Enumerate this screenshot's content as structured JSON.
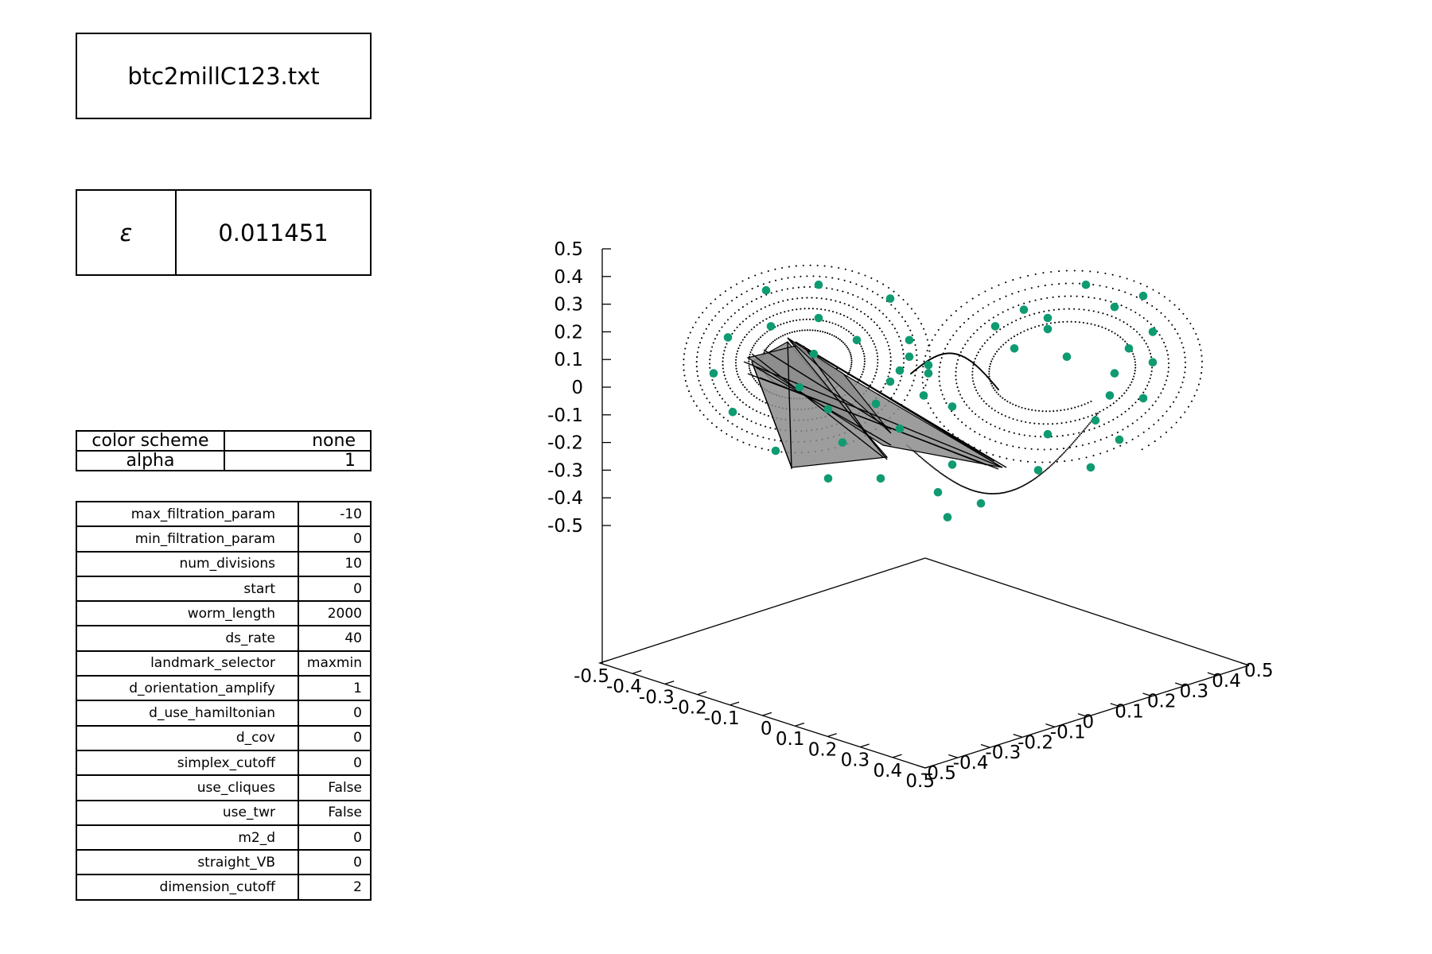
{
  "title": "btc2millC123.txt",
  "epsilon": {
    "symbol": "ε",
    "value": "0.011451"
  },
  "display_settings": [
    {
      "key": "color scheme",
      "value": "none"
    },
    {
      "key": "alpha",
      "value": "1"
    }
  ],
  "parameters": [
    {
      "key": "max_filtration_param",
      "value": "-10"
    },
    {
      "key": "min_filtration_param",
      "value": "0"
    },
    {
      "key": "num_divisions",
      "value": "10"
    },
    {
      "key": "start",
      "value": "0"
    },
    {
      "key": "worm_length",
      "value": "2000"
    },
    {
      "key": "ds_rate",
      "value": "40"
    },
    {
      "key": "landmark_selector",
      "value": "maxmin"
    },
    {
      "key": "d_orientation_amplify",
      "value": "1"
    },
    {
      "key": "d_use_hamiltonian",
      "value": "0"
    },
    {
      "key": "d_cov",
      "value": "0"
    },
    {
      "key": "simplex_cutoff",
      "value": "0"
    },
    {
      "key": "use_cliques",
      "value": "False"
    },
    {
      "key": "use_twr",
      "value": "False"
    },
    {
      "key": "m2_d",
      "value": "0"
    },
    {
      "key": "straight_VB",
      "value": "0"
    },
    {
      "key": "dimension_cutoff",
      "value": "2"
    }
  ],
  "chart_data": {
    "type": "scatter",
    "projection": "3d",
    "xlim": [
      -0.5,
      0.5
    ],
    "ylim": [
      -0.5,
      0.5
    ],
    "zlim": [
      -0.5,
      0.5
    ],
    "x_ticks": [
      "-0.5",
      "-0.4",
      "-0.3",
      "-0.2",
      "-0.1",
      "0",
      "0.1",
      "0.2",
      "0.3",
      "0.4",
      "0.5"
    ],
    "y_ticks": [
      "-0.5",
      "-0.4",
      "-0.3",
      "-0.2",
      "-0.1",
      "0",
      "0.1",
      "0.2",
      "0.3",
      "0.4",
      "0.5"
    ],
    "z_ticks": [
      "0.5",
      "0.4",
      "0.3",
      "0.2",
      "0.1",
      "0",
      "-0.1",
      "-0.2",
      "-0.3",
      "-0.4",
      "-0.5"
    ],
    "grid": false,
    "landmark_color": "#0f9b72",
    "trajectory_color": "#000000",
    "complex_fill_color": "#8c8c8c",
    "landmarks": [
      [
        -0.46,
        0.05
      ],
      [
        -0.43,
        0.18
      ],
      [
        -0.42,
        -0.09
      ],
      [
        -0.35,
        0.35
      ],
      [
        -0.34,
        0.22
      ],
      [
        -0.33,
        -0.23
      ],
      [
        -0.28,
        0.0
      ],
      [
        -0.25,
        0.12
      ],
      [
        -0.24,
        0.37
      ],
      [
        -0.24,
        0.25
      ],
      [
        -0.22,
        -0.33
      ],
      [
        -0.22,
        -0.08
      ],
      [
        -0.19,
        -0.2
      ],
      [
        -0.16,
        0.17
      ],
      [
        -0.12,
        -0.06
      ],
      [
        -0.11,
        -0.33
      ],
      [
        -0.09,
        0.02
      ],
      [
        -0.09,
        0.32
      ],
      [
        -0.07,
        0.06
      ],
      [
        -0.07,
        -0.15
      ],
      [
        -0.05,
        0.17
      ],
      [
        -0.05,
        0.11
      ],
      [
        -0.02,
        -0.03
      ],
      [
        -0.01,
        0.08
      ],
      [
        -0.01,
        0.05
      ],
      [
        0.01,
        -0.38
      ],
      [
        0.03,
        -0.47
      ],
      [
        0.04,
        -0.28
      ],
      [
        0.1,
        -0.42
      ],
      [
        0.04,
        -0.07
      ],
      [
        0.13,
        0.22
      ],
      [
        0.17,
        0.14
      ],
      [
        0.19,
        0.28
      ],
      [
        0.24,
        0.21
      ],
      [
        0.24,
        -0.17
      ],
      [
        0.22,
        -0.3
      ],
      [
        0.24,
        0.25
      ],
      [
        0.32,
        0.37
      ],
      [
        0.28,
        0.11
      ],
      [
        0.33,
        -0.29
      ],
      [
        0.34,
        -0.12
      ],
      [
        0.38,
        0.29
      ],
      [
        0.38,
        0.05
      ],
      [
        0.37,
        -0.03
      ],
      [
        0.39,
        -0.19
      ],
      [
        0.41,
        0.14
      ],
      [
        0.44,
        -0.04
      ],
      [
        0.46,
        0.2
      ],
      [
        0.46,
        0.09
      ],
      [
        0.44,
        0.33
      ]
    ]
  }
}
